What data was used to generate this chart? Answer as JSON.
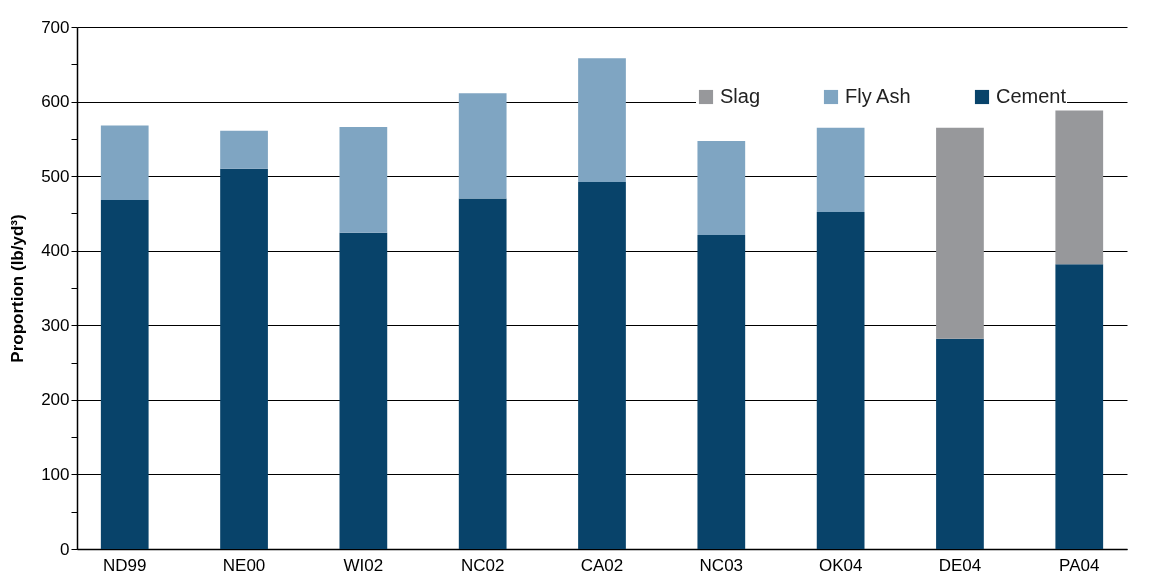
{
  "chart_data": {
    "type": "bar",
    "stacked": true,
    "ylabel": "Proportion (lb/yd³)",
    "categories": [
      "ND99",
      "NE00",
      "WI02",
      "NC02",
      "CA02",
      "NC03",
      "OK04",
      "DE04",
      "PA04"
    ],
    "series": [
      {
        "name": "Cement",
        "color": "#08436a",
        "values": [
          468,
          510,
          424,
          470,
          492,
          421,
          452,
          282,
          382
        ]
      },
      {
        "name": "Fly Ash",
        "color": "#7fa5c2",
        "values": [
          100,
          51,
          142,
          141,
          166,
          126,
          113,
          null,
          null
        ]
      },
      {
        "name": "Slag",
        "color": "#97989b",
        "values": [
          null,
          null,
          null,
          null,
          null,
          null,
          null,
          283,
          206
        ]
      }
    ],
    "ylim": [
      0,
      700
    ],
    "yticks": [
      0,
      {
        "value": 50,
        "label": null
      },
      100,
      {
        "value": 150,
        "label": null
      },
      200,
      {
        "value": 250,
        "label": null
      },
      300,
      {
        "value": 350,
        "label": null
      },
      400,
      {
        "value": 450,
        "label": null
      },
      500,
      {
        "value": 550,
        "label": null
      },
      600,
      {
        "value": 650,
        "label": null
      },
      700
    ],
    "grid": "y",
    "legend": "top right"
  }
}
